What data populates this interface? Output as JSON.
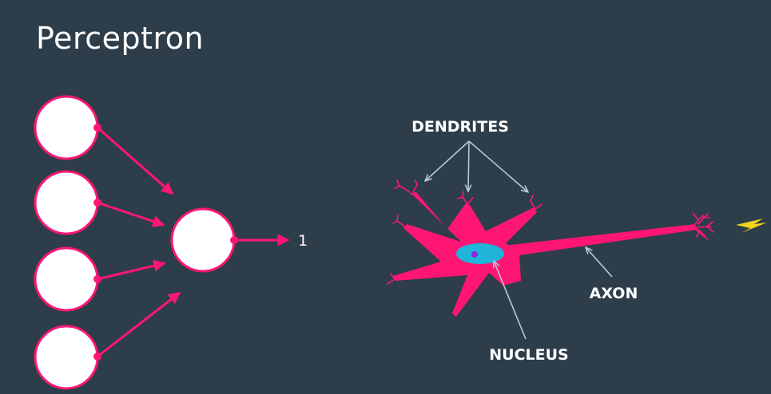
{
  "title": "Perceptron",
  "perceptron": {
    "input_count": 4,
    "output_label": "1"
  },
  "neuron": {
    "labels": {
      "dendrites": "DENDRITES",
      "axon": "AXON",
      "nucleus": "NUCLEUS"
    }
  },
  "colors": {
    "background": "#2e3d4a",
    "accent": "#ff1675",
    "node_fill": "#ffffff",
    "pointer": "#b8c8d4",
    "nucleus": "#1fb4d8",
    "nucleus_dot": "#8a2be2",
    "spark": "#f2d21b"
  },
  "icons": {
    "spark": "lightning-bolt-icon"
  }
}
